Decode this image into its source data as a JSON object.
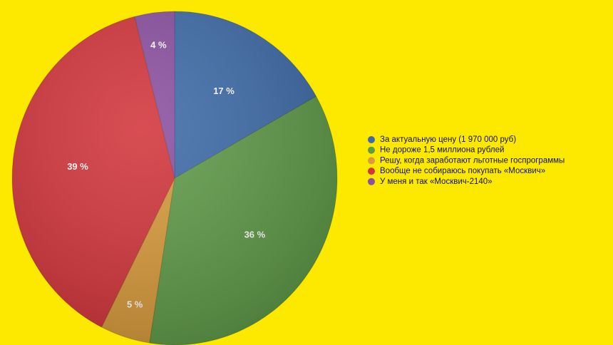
{
  "chart_data": {
    "type": "pie",
    "categories": [
      "За актуальную цену (1 970 000 руб)",
      "Не дороже 1,5 миллиона рублей",
      "Решу, когда заработают льготные госпрограммы",
      "Вообще не собираюсь покупать «Москвич»",
      "У меня и так «Москвич-2140»"
    ],
    "values": [
      17,
      36,
      5,
      39,
      4
    ],
    "value_labels": [
      "17 %",
      "36 %",
      "5 %",
      "39 %",
      "4 %"
    ],
    "colors": [
      "#3e6ba8",
      "#5f9a48",
      "#d89a3b",
      "#d2353b",
      "#8b50a0"
    ]
  }
}
